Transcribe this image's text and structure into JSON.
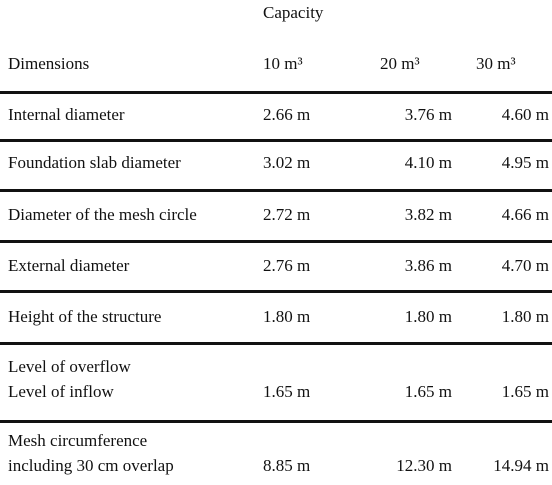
{
  "table": {
    "capacity_label": "Capacity",
    "header": [
      "Dimensions",
      "10 m³",
      "20 m³",
      "30 m³"
    ],
    "rows": [
      {
        "label": [
          "Internal diameter"
        ],
        "values": [
          "2.66 m",
          "3.76 m",
          "4.60 m"
        ]
      },
      {
        "label": [
          "Foundation slab diameter"
        ],
        "values": [
          "3.02 m",
          "4.10 m",
          "4.95 m"
        ]
      },
      {
        "label": [
          "Diameter of the mesh circle"
        ],
        "values": [
          "2.72 m",
          "3.82 m",
          "4.66 m"
        ]
      },
      {
        "label": [
          "External diameter"
        ],
        "values": [
          "2.76 m",
          "3.86 m",
          "4.70 m"
        ]
      },
      {
        "label": [
          "Height of the structure"
        ],
        "values": [
          "1.80 m",
          "1.80 m",
          "1.80 m"
        ]
      },
      {
        "label": [
          "Level of overflow",
          "Level of inflow"
        ],
        "values": [
          "1.65 m",
          "1.65 m",
          "1.65 m"
        ]
      },
      {
        "label": [
          "Mesh circumference",
          "including 30 cm overlap"
        ],
        "values": [
          "8.85 m",
          "12.30 m",
          "14.94 m"
        ]
      }
    ]
  }
}
